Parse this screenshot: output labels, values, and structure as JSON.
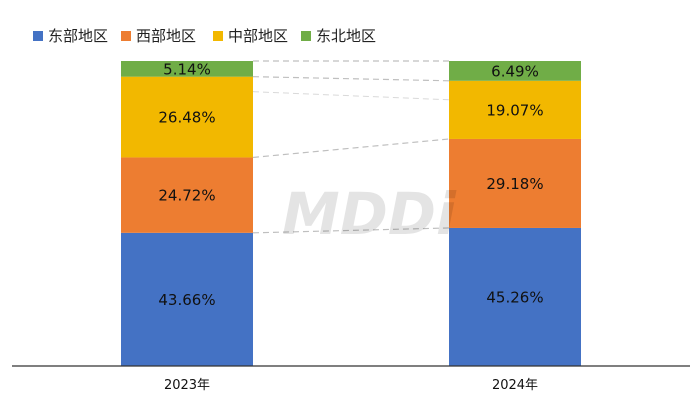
{
  "chart_data": {
    "type": "bar",
    "stacked": true,
    "normalized": true,
    "categories": [
      "2023年",
      "2024年"
    ],
    "series": [
      {
        "name": "东部地区",
        "color": "#4472C4",
        "values": [
          43.66,
          45.26
        ],
        "labels": [
          "43.66%",
          "45.26%"
        ]
      },
      {
        "name": "西部地区",
        "color": "#ED7D31",
        "values": [
          24.72,
          29.18
        ],
        "labels": [
          "24.72%",
          "29.18%"
        ]
      },
      {
        "name": "中部地区",
        "color": "#F2B800",
        "values": [
          26.48,
          19.07
        ],
        "labels": [
          "26.48%",
          "19.07%"
        ]
      },
      {
        "name": "东北地区",
        "color": "#70AD47",
        "values": [
          5.14,
          6.49
        ],
        "labels": [
          "5.14%",
          "6.49%"
        ]
      }
    ],
    "ylim": [
      0,
      100
    ],
    "legend_position": "top-left",
    "watermark": "MDDi",
    "connector_lines": true
  }
}
